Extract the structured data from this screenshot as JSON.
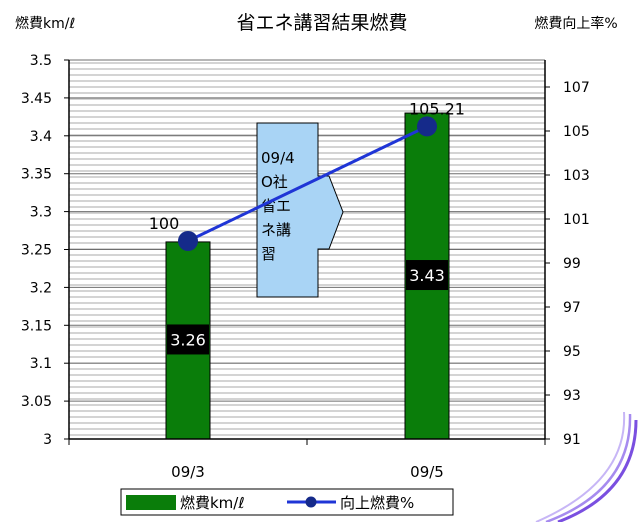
{
  "chart_data": {
    "type": "bar",
    "title": "省エネ講習結果燃費",
    "left_axis_label": "燃費km/ℓ",
    "right_axis_label": "燃費向上率%",
    "categories": [
      "09/3",
      "09/5"
    ],
    "y_ticks": [
      "3.5",
      "3.45",
      "3.4",
      "3.35",
      "3.3",
      "3.25",
      "3.2",
      "3.15",
      "3.1",
      "3.05",
      "3"
    ],
    "y2_ticks": [
      "107",
      "105",
      "103",
      "101",
      "99",
      "97",
      "95",
      "93",
      "91"
    ],
    "ylim": [
      3,
      3.5
    ],
    "y2lim": [
      91,
      108
    ],
    "grid": true,
    "legend_position": "bottom",
    "series": [
      {
        "name": "燃費km/ℓ",
        "kind": "bar",
        "axis": "left",
        "color": "#0a7d0a",
        "values": [
          3.26,
          3.43
        ],
        "labels": [
          "3.26",
          "3.43"
        ]
      },
      {
        "name": "向上燃費%",
        "kind": "line",
        "axis": "right",
        "color": "#1f35d6",
        "marker_color": "#152a8a",
        "values": [
          100,
          105.21
        ],
        "labels": [
          "100",
          "105.21"
        ]
      }
    ],
    "annotation": {
      "lines": [
        "09/4",
        "O社",
        "省エ",
        "ネ講",
        "習"
      ],
      "fill": "#a9d4f5"
    }
  }
}
